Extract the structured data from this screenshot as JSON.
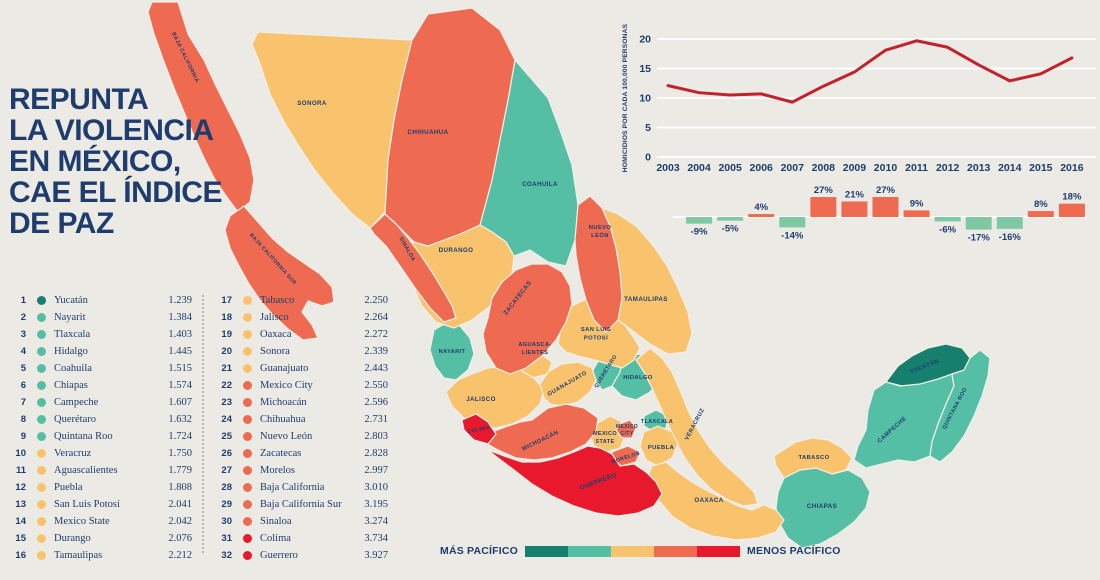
{
  "title": {
    "lines": [
      "REPUNTA",
      "LA VIOLENCIA",
      "EN MÉXICO,",
      "CAE EL ÍNDICE",
      "DE PAZ"
    ]
  },
  "background": "#ECEAE4",
  "text_color": "#1E3D6E",
  "palette": {
    "L1": "#177F6D",
    "L2": "#54BFA4",
    "L3": "#F9C36E",
    "L4": "#EE6B51",
    "L5": "#E8192C"
  },
  "legend": {
    "left": "MÁS PACÍFICO",
    "right": "MENOS PACÍFICO",
    "colors": [
      "#177F6D",
      "#54BFA4",
      "#F9C36E",
      "#EE6B51",
      "#E8192C"
    ]
  },
  "states": [
    {
      "rank": 1,
      "id": "yucatan",
      "name": "Yucatán",
      "score": "1.239",
      "level": 1,
      "map_label_lines": [
        "YUCATÁN"
      ]
    },
    {
      "rank": 2,
      "id": "nayarit",
      "name": "Nayarit",
      "score": "1.384",
      "level": 2,
      "map_label_lines": [
        "NAYARIT"
      ]
    },
    {
      "rank": 3,
      "id": "tlaxcala",
      "name": "Tlaxcala",
      "score": "1.403",
      "level": 2,
      "map_label_lines": [
        "TLAXCALA"
      ]
    },
    {
      "rank": 4,
      "id": "hidalgo",
      "name": "Hidalgo",
      "score": "1.445",
      "level": 2,
      "map_label_lines": [
        "HIDALGO"
      ]
    },
    {
      "rank": 5,
      "id": "coahuila",
      "name": "Coahuila",
      "score": "1.515",
      "level": 2,
      "map_label_lines": [
        "COAHUILA"
      ]
    },
    {
      "rank": 6,
      "id": "chiapas",
      "name": "Chiapas",
      "score": "1.574",
      "level": 2,
      "map_label_lines": [
        "CHIAPAS"
      ]
    },
    {
      "rank": 7,
      "id": "campeche",
      "name": "Campeche",
      "score": "1.607",
      "level": 2,
      "map_label_lines": [
        "CAMPECHE"
      ]
    },
    {
      "rank": 8,
      "id": "queretaro",
      "name": "Querétaro",
      "score": "1.632",
      "level": 2,
      "map_label_lines": [
        "QUERÉTARO"
      ]
    },
    {
      "rank": 9,
      "id": "quintana_roo",
      "name": "Quintana Roo",
      "score": "1.724",
      "level": 2,
      "map_label_lines": [
        "QUINTANA ROO"
      ]
    },
    {
      "rank": 10,
      "id": "veracruz",
      "name": "Veracruz",
      "score": "1.750",
      "level": 3,
      "map_label_lines": [
        "VERACRUZ"
      ]
    },
    {
      "rank": 11,
      "id": "aguascalientes",
      "name": "Aguascalientes",
      "score": "1.779",
      "level": 3,
      "map_label_lines": [
        "AGUASCA-",
        "LIENTES"
      ]
    },
    {
      "rank": 12,
      "id": "puebla",
      "name": "Puebla",
      "score": "1.808",
      "level": 3,
      "map_label_lines": [
        "PUEBLA"
      ]
    },
    {
      "rank": 13,
      "id": "san_luis_potosi",
      "name": "San Luis Potosí",
      "score": "2.041",
      "level": 3,
      "map_label_lines": [
        "SAN LUIS",
        "POTOSÍ"
      ]
    },
    {
      "rank": 14,
      "id": "mexico_state",
      "name": "Mexico State",
      "score": "2.042",
      "level": 3,
      "map_label_lines": [
        "MEXICO",
        "STATE"
      ]
    },
    {
      "rank": 15,
      "id": "durango",
      "name": "Durango",
      "score": "2.076",
      "level": 3,
      "map_label_lines": [
        "DURANGO"
      ]
    },
    {
      "rank": 16,
      "id": "tamaulipas",
      "name": "Tamaulipas",
      "score": "2.212",
      "level": 3,
      "map_label_lines": [
        "TAMAULIPAS"
      ]
    },
    {
      "rank": 17,
      "id": "tabasco",
      "name": "Tabasco",
      "score": "2.250",
      "level": 3,
      "map_label_lines": [
        "TABASCO"
      ]
    },
    {
      "rank": 18,
      "id": "jalisco",
      "name": "Jalisco",
      "score": "2.264",
      "level": 3,
      "map_label_lines": [
        "JALISCO"
      ]
    },
    {
      "rank": 19,
      "id": "oaxaca",
      "name": "Oaxaca",
      "score": "2.272",
      "level": 3,
      "map_label_lines": [
        "OAXACA"
      ]
    },
    {
      "rank": 20,
      "id": "sonora",
      "name": "Sonora",
      "score": "2.339",
      "level": 3,
      "map_label_lines": [
        "SONORA"
      ]
    },
    {
      "rank": 21,
      "id": "guanajuato",
      "name": "Guanajuato",
      "score": "2.443",
      "level": 3,
      "map_label_lines": [
        "GUANAJUATO"
      ]
    },
    {
      "rank": 22,
      "id": "mexico_city",
      "name": "Mexico City",
      "score": "2.550",
      "level": 4,
      "map_label_lines": [
        "MEXICO",
        "CITY"
      ]
    },
    {
      "rank": 23,
      "id": "michoacan",
      "name": "Michoacán",
      "score": "2.596",
      "level": 4,
      "map_label_lines": [
        "MICHOACÁN"
      ]
    },
    {
      "rank": 24,
      "id": "chihuahua",
      "name": "Chihuahua",
      "score": "2.731",
      "level": 4,
      "map_label_lines": [
        "CHIHUAHUA"
      ]
    },
    {
      "rank": 25,
      "id": "nuevo_leon",
      "name": "Nuevo León",
      "score": "2.803",
      "level": 4,
      "map_label_lines": [
        "NUEVO",
        "LEÓN"
      ]
    },
    {
      "rank": 26,
      "id": "zacatecas",
      "name": "Zacatecas",
      "score": "2.828",
      "level": 4,
      "map_label_lines": [
        "ZACATECAS"
      ]
    },
    {
      "rank": 27,
      "id": "morelos",
      "name": "Morelos",
      "score": "2.997",
      "level": 4,
      "map_label_lines": [
        "MORELOS"
      ]
    },
    {
      "rank": 28,
      "id": "baja_california",
      "name": "Baja California",
      "score": "3.010",
      "level": 4,
      "map_label_lines": [
        "BAJA CALIFORNIA"
      ]
    },
    {
      "rank": 29,
      "id": "baja_california_sur",
      "name": "Baja California Sur",
      "score": "3.195",
      "level": 4,
      "map_label_lines": [
        "BAJA CALIFORNIA SUR"
      ]
    },
    {
      "rank": 30,
      "id": "sinaloa",
      "name": "Sinaloa",
      "score": "3.274",
      "level": 4,
      "map_label_lines": [
        "SINALOA"
      ]
    },
    {
      "rank": 31,
      "id": "colima",
      "name": "Colima",
      "score": "3.734",
      "level": 5,
      "map_label_lines": [
        "COLIMA"
      ]
    },
    {
      "rank": 32,
      "id": "guerrero",
      "name": "Guerrero",
      "score": "3.927",
      "level": 5,
      "map_label_lines": [
        "GUERRERO"
      ]
    }
  ],
  "chart_data": [
    {
      "type": "line",
      "ylabel": "HOMICIDIOS POR CADA 100,000 PERSONAS",
      "x": [
        2003,
        2004,
        2005,
        2006,
        2007,
        2008,
        2009,
        2010,
        2011,
        2012,
        2013,
        2014,
        2015,
        2016
      ],
      "values": [
        12.1,
        10.9,
        10.5,
        10.7,
        9.3,
        12.0,
        14.4,
        18.1,
        19.7,
        18.6,
        15.6,
        12.9,
        14.1,
        16.8
      ],
      "ylim": [
        0,
        20
      ],
      "yticks": [
        0,
        5,
        10,
        15,
        20
      ],
      "grid": true,
      "line_color": "#C2222B"
    },
    {
      "type": "bar",
      "categories": [
        2004,
        2005,
        2006,
        2007,
        2008,
        2009,
        2010,
        2011,
        2012,
        2013,
        2014,
        2015,
        2016
      ],
      "values": [
        -9,
        -5,
        4,
        -14,
        27,
        21,
        27,
        9,
        -6,
        -17,
        -16,
        8,
        18
      ],
      "unit": "%",
      "positive_color": "#EE6B51",
      "negative_color": "#7FC8A4"
    }
  ]
}
